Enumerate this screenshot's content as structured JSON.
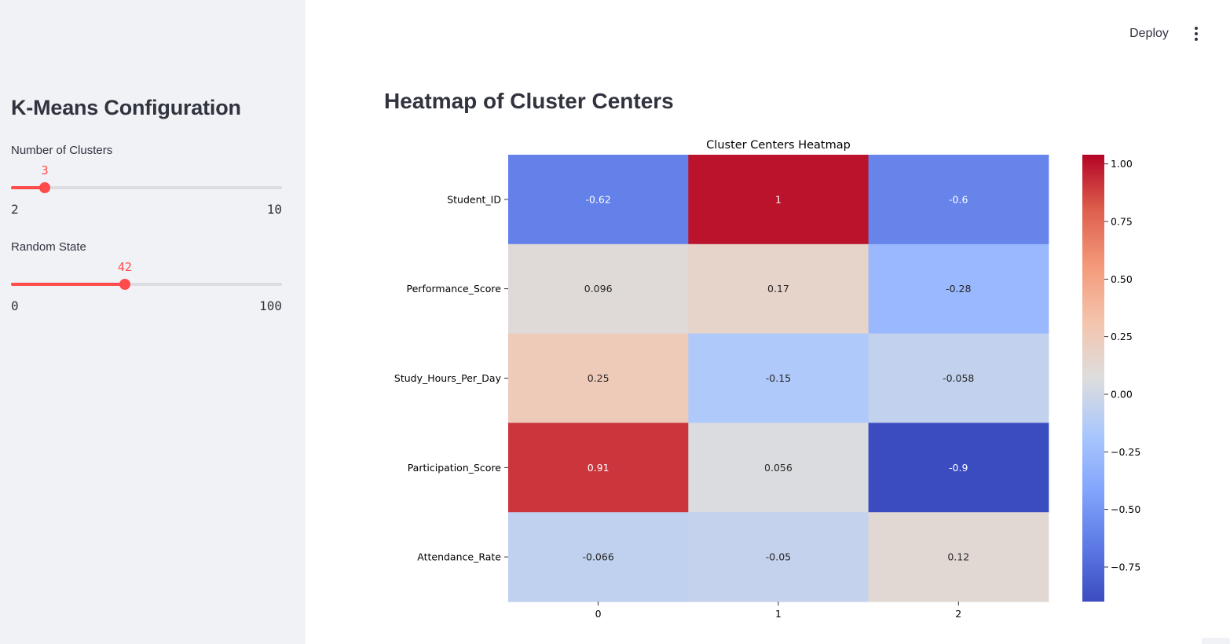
{
  "header": {
    "deploy_label": "Deploy",
    "menu_icon": "kebab-menu-icon"
  },
  "sidebar": {
    "title": "K-Means Configuration",
    "sliders": [
      {
        "label": "Number of Clusters",
        "value": 3,
        "min": 2,
        "max": 10
      },
      {
        "label": "Random State",
        "value": 42,
        "min": 0,
        "max": 100
      }
    ],
    "accent_color": "#ff4b4b"
  },
  "main": {
    "title": "Heatmap of Cluster Centers"
  },
  "chart_data": {
    "type": "heatmap",
    "title": "Cluster Centers Heatmap",
    "rows": [
      "Student_ID",
      "Performance_Score",
      "Study_Hours_Per_Day",
      "Participation_Score",
      "Attendance_Rate"
    ],
    "columns": [
      "0",
      "1",
      "2"
    ],
    "values": [
      [
        -0.62,
        1,
        -0.6
      ],
      [
        0.096,
        0.17,
        -0.28
      ],
      [
        0.25,
        -0.15,
        -0.058
      ],
      [
        0.91,
        0.056,
        -0.9
      ],
      [
        -0.066,
        -0.05,
        0.12
      ]
    ],
    "cell_labels": [
      [
        "-0.62",
        "1",
        "-0.6"
      ],
      [
        "0.096",
        "0.17",
        "-0.28"
      ],
      [
        "0.25",
        "-0.15",
        "-0.058"
      ],
      [
        "0.91",
        "0.056",
        "-0.9"
      ],
      [
        "-0.066",
        "-0.05",
        "0.12"
      ]
    ],
    "colormap": "coolwarm",
    "color_range": [
      -0.9,
      1.04
    ],
    "colorbar_ticks": [
      "1.00",
      "0.75",
      "0.50",
      "0.25",
      "0.00",
      "−0.25",
      "−0.50",
      "−0.75"
    ],
    "colorbar_tick_values": [
      1.0,
      0.75,
      0.5,
      0.25,
      0.0,
      -0.25,
      -0.5,
      -0.75
    ],
    "grid": false
  }
}
